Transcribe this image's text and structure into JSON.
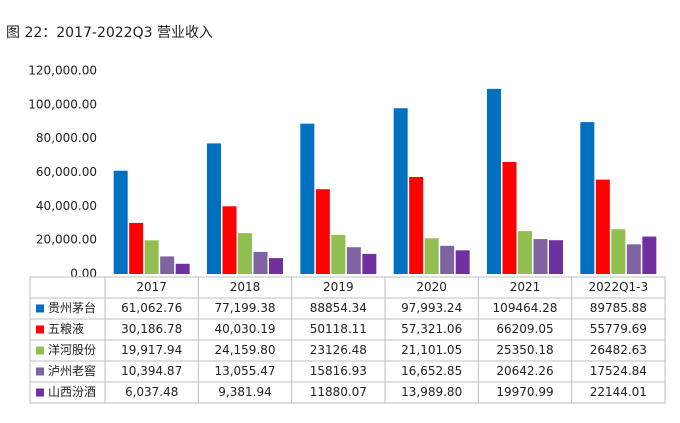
{
  "chart_data": {
    "type": "bar",
    "title": "图 22：2017-2022Q3 营业收入",
    "categories": [
      "2017",
      "2018",
      "2019",
      "2020",
      "2021",
      "2022Q1-3"
    ],
    "series": [
      {
        "name": "贵州茅台",
        "color": "#0070c0",
        "values": [
          61062.76,
          77199.38,
          88854.34,
          97993.24,
          109464.28,
          89785.88
        ],
        "value_labels": [
          "61,062.76",
          "77,199.38",
          "88854.34",
          "97,993.24",
          "109464.28",
          "89785.88"
        ]
      },
      {
        "name": "五粮液",
        "color": "#ff0000",
        "values": [
          30186.78,
          40030.19,
          50118.11,
          57321.06,
          66209.05,
          55779.69
        ],
        "value_labels": [
          "30,186.78",
          "40,030.19",
          "50118.11",
          "57,321.06",
          "66209.05",
          "55779.69"
        ]
      },
      {
        "name": "洋河股份",
        "color": "#92c050",
        "values": [
          19917.94,
          24159.8,
          23126.48,
          21101.05,
          25350.18,
          26482.63
        ],
        "value_labels": [
          "19,917.94",
          "24,159.80",
          "23126.48",
          "21,101.05",
          "25350.18",
          "26482.63"
        ]
      },
      {
        "name": "泸州老窖",
        "color": "#8064a2",
        "values": [
          10394.87,
          13055.47,
          15816.93,
          16652.85,
          20642.26,
          17524.84
        ],
        "value_labels": [
          "10,394.87",
          "13,055.47",
          "15816.93",
          "16,652.85",
          "20642.26",
          "17524.84"
        ]
      },
      {
        "name": "山西汾酒",
        "color": "#7030a0",
        "values": [
          6037.48,
          9381.94,
          11880.07,
          13989.8,
          19970.99,
          22144.01
        ],
        "value_labels": [
          "6,037.48",
          "9,381.94",
          "11880.07",
          "13,989.80",
          "19970.99",
          "22144.01"
        ]
      }
    ],
    "ylim": [
      0,
      120000
    ],
    "yticks": [
      {
        "value": 0,
        "label": "0.00"
      },
      {
        "value": 20000,
        "label": "20,000.00"
      },
      {
        "value": 40000,
        "label": "40,000.00"
      },
      {
        "value": 60000,
        "label": "60,000.00"
      },
      {
        "value": 80000,
        "label": "80,000.00"
      },
      {
        "value": 100000,
        "label": "100,000.00"
      },
      {
        "value": 120000,
        "label": "120,000.00"
      }
    ],
    "grid": false
  }
}
